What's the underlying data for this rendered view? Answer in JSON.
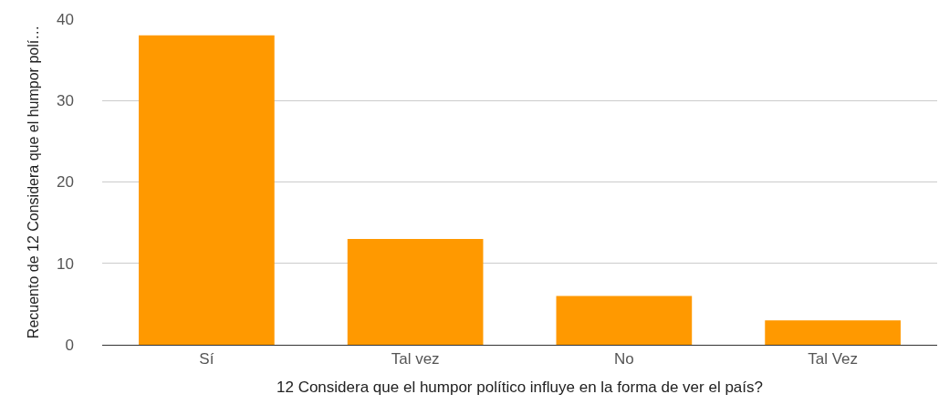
{
  "chart_data": {
    "type": "bar",
    "xlabel": "12 Considera que el humpor político influye en la forma de ver el país?",
    "ylabel": "Recuento de 12 Considera que el humpor polí…",
    "categories": [
      "Sí",
      "Tal vez",
      "No",
      "Tal Vez"
    ],
    "values": [
      38,
      13,
      6,
      3
    ],
    "color": "#ff9900",
    "ylim": [
      0,
      40
    ],
    "yticks": [
      0,
      10,
      20,
      30,
      40
    ],
    "grid": "y"
  }
}
